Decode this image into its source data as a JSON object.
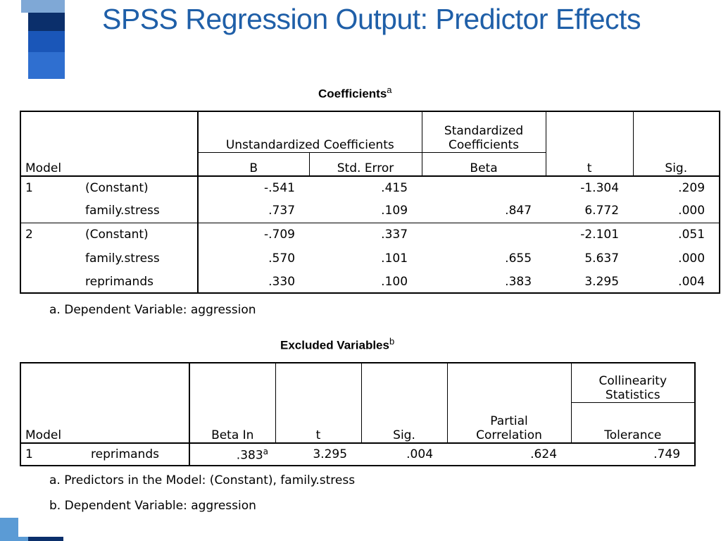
{
  "slide": {
    "title": "SPSS Regression Output: Predictor Effects"
  },
  "coefficients": {
    "title": "Coefficients",
    "title_sup": "a",
    "headers": {
      "model": "Model",
      "unstd_group": "Unstandardized Coefficients",
      "std_group_line1": "Standardized",
      "std_group_line2": "Coefficients",
      "b": "B",
      "std_error": "Std. Error",
      "beta": "Beta",
      "t": "t",
      "sig": "Sig."
    },
    "rows": [
      {
        "model": "1",
        "predictor": "(Constant)",
        "b": "-.541",
        "std_error": ".415",
        "beta": "",
        "t": "-1.304",
        "sig": ".209"
      },
      {
        "model": "",
        "predictor": "family.stress",
        "b": ".737",
        "std_error": ".109",
        "beta": ".847",
        "t": "6.772",
        "sig": ".000"
      },
      {
        "model": "2",
        "predictor": "(Constant)",
        "b": "-.709",
        "std_error": ".337",
        "beta": "",
        "t": "-2.101",
        "sig": ".051"
      },
      {
        "model": "",
        "predictor": "family.stress",
        "b": ".570",
        "std_error": ".101",
        "beta": ".655",
        "t": "5.637",
        "sig": ".000"
      },
      {
        "model": "",
        "predictor": "reprimands",
        "b": ".330",
        "std_error": ".100",
        "beta": ".383",
        "t": "3.295",
        "sig": ".004"
      }
    ],
    "footnote": "a. Dependent Variable: aggression"
  },
  "excluded": {
    "title": "Excluded Variables",
    "title_sup": "b",
    "headers": {
      "model": "Model",
      "beta_in": "Beta In",
      "t": "t",
      "sig": "Sig.",
      "partial_line1": "Partial",
      "partial_line2": "Correlation",
      "collin_line1": "Collinearity",
      "collin_line2": "Statistics",
      "tolerance": "Tolerance"
    },
    "rows": [
      {
        "model": "1",
        "predictor": "reprimands",
        "beta_in": ".383",
        "beta_in_sup": "a",
        "t": "3.295",
        "sig": ".004",
        "partial": ".624",
        "tolerance": ".749"
      }
    ],
    "footnote_a": "a. Predictors in the Model: (Constant), family.stress",
    "footnote_b": "b. Dependent Variable: aggression"
  },
  "colors": {
    "title": "#1f5fa8",
    "strip_dark": "#0b2f6b",
    "strip_mid": "#1a56b8",
    "strip_light": "#5b9bd5"
  }
}
